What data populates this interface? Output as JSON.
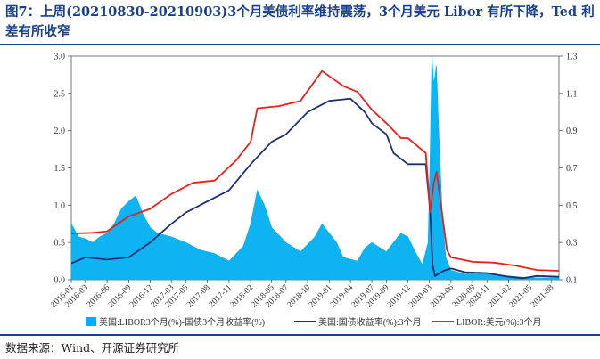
{
  "title": "图7：上周(20210830-20210903)3个月美债利率维持震荡，3个月美元 Libor 有所下降，Ted 利差有所收窄",
  "source": "数据来源：Wind、开源证券研究所",
  "colors": {
    "title": "#1a3f8c",
    "spread": "#00b0f0",
    "treasury": "#1f3070",
    "libor": "#e8211b"
  },
  "chart_data": {
    "type": "line",
    "x_tick_labels": [
      "2016-01",
      "2016-03",
      "2016-06",
      "2016-09",
      "2016-12",
      "2017-03",
      "2017-05",
      "2017-08",
      "2017-11",
      "2018-02",
      "2018-05",
      "2018-07",
      "2018-10",
      "2019-01",
      "2019-04",
      "2019-07",
      "2019-09",
      "2019-12",
      "2020-03",
      "2020-06",
      "2020-09",
      "2020-11",
      "2021-02",
      "2021-05",
      "2021-08"
    ],
    "x_tick_dates": [
      "2016-01-01",
      "2016-03-01",
      "2016-06-01",
      "2016-09-01",
      "2016-12-01",
      "2017-03-01",
      "2017-05-01",
      "2017-08-01",
      "2017-11-01",
      "2018-02-01",
      "2018-05-01",
      "2018-07-01",
      "2018-10-01",
      "2019-01-01",
      "2019-04-01",
      "2019-07-01",
      "2019-09-01",
      "2019-12-01",
      "2020-03-01",
      "2020-06-01",
      "2020-09-01",
      "2020-11-01",
      "2021-02-01",
      "2021-05-01",
      "2021-08-01"
    ],
    "x_range": [
      "2016-01-01",
      "2021-09-03"
    ],
    "y_left": {
      "range": [
        0,
        3.0
      ],
      "ticks": [
        "0.0",
        "0.5",
        "1.0",
        "1.5",
        "2.0",
        "2.5",
        "3.0"
      ]
    },
    "y_right": {
      "range": [
        0.1,
        1.3
      ],
      "ticks": [
        "0.1",
        "0.3",
        "0.5",
        "0.7",
        "0.9",
        "1.1",
        "1.3"
      ]
    },
    "legend_position": "bottom",
    "series": [
      {
        "name": "美国:LIBOR3个月(%)-国债3个月收益率(%)",
        "style": "area",
        "axis": "right",
        "color": "#00b0f0",
        "points": [
          [
            "2016-01-01",
            0.4
          ],
          [
            "2016-02-01",
            0.33
          ],
          [
            "2016-03-01",
            0.32
          ],
          [
            "2016-04-01",
            0.3
          ],
          [
            "2016-05-01",
            0.33
          ],
          [
            "2016-06-01",
            0.35
          ],
          [
            "2016-07-01",
            0.4
          ],
          [
            "2016-08-01",
            0.48
          ],
          [
            "2016-09-01",
            0.52
          ],
          [
            "2016-10-01",
            0.55
          ],
          [
            "2016-11-01",
            0.45
          ],
          [
            "2016-12-01",
            0.38
          ],
          [
            "2017-01-01",
            0.35
          ],
          [
            "2017-03-01",
            0.33
          ],
          [
            "2017-05-01",
            0.3
          ],
          [
            "2017-07-01",
            0.26
          ],
          [
            "2017-09-01",
            0.24
          ],
          [
            "2017-11-01",
            0.2
          ],
          [
            "2018-01-01",
            0.28
          ],
          [
            "2018-02-01",
            0.4
          ],
          [
            "2018-03-01",
            0.58
          ],
          [
            "2018-04-01",
            0.5
          ],
          [
            "2018-05-01",
            0.38
          ],
          [
            "2018-07-01",
            0.3
          ],
          [
            "2018-09-01",
            0.25
          ],
          [
            "2018-11-01",
            0.33
          ],
          [
            "2018-12-01",
            0.4
          ],
          [
            "2019-01-01",
            0.35
          ],
          [
            "2019-02-01",
            0.3
          ],
          [
            "2019-03-01",
            0.22
          ],
          [
            "2019-05-01",
            0.2
          ],
          [
            "2019-06-01",
            0.27
          ],
          [
            "2019-07-01",
            0.3
          ],
          [
            "2019-09-01",
            0.25
          ],
          [
            "2019-10-01",
            0.3
          ],
          [
            "2019-11-01",
            0.35
          ],
          [
            "2019-12-01",
            0.33
          ],
          [
            "2020-01-01",
            0.25
          ],
          [
            "2020-02-01",
            0.18
          ],
          [
            "2020-02-25",
            0.3
          ],
          [
            "2020-03-05",
            0.8
          ],
          [
            "2020-03-12",
            1.3
          ],
          [
            "2020-03-20",
            1.15
          ],
          [
            "2020-03-31",
            1.25
          ],
          [
            "2020-04-10",
            0.9
          ],
          [
            "2020-04-25",
            0.45
          ],
          [
            "2020-05-10",
            0.22
          ],
          [
            "2020-06-01",
            0.15
          ],
          [
            "2020-08-01",
            0.13
          ],
          [
            "2020-10-01",
            0.14
          ],
          [
            "2020-12-01",
            0.13
          ],
          [
            "2021-02-01",
            0.12
          ],
          [
            "2021-05-01",
            0.11
          ],
          [
            "2021-09-03",
            0.11
          ]
        ]
      },
      {
        "name": "美国:国债收益率(%):3个月",
        "style": "line",
        "axis": "left",
        "color": "#1f3070",
        "points": [
          [
            "2016-01-01",
            0.22
          ],
          [
            "2016-03-01",
            0.3
          ],
          [
            "2016-06-01",
            0.27
          ],
          [
            "2016-09-01",
            0.3
          ],
          [
            "2016-12-01",
            0.5
          ],
          [
            "2017-03-01",
            0.75
          ],
          [
            "2017-05-01",
            0.9
          ],
          [
            "2017-08-01",
            1.05
          ],
          [
            "2017-11-01",
            1.2
          ],
          [
            "2018-02-01",
            1.55
          ],
          [
            "2018-05-01",
            1.85
          ],
          [
            "2018-07-01",
            1.95
          ],
          [
            "2018-10-01",
            2.25
          ],
          [
            "2019-01-01",
            2.4
          ],
          [
            "2019-04-01",
            2.43
          ],
          [
            "2019-06-01",
            2.25
          ],
          [
            "2019-07-01",
            2.1
          ],
          [
            "2019-09-01",
            1.95
          ],
          [
            "2019-10-01",
            1.7
          ],
          [
            "2019-12-01",
            1.55
          ],
          [
            "2020-02-15",
            1.55
          ],
          [
            "2020-03-05",
            0.9
          ],
          [
            "2020-03-15",
            0.2
          ],
          [
            "2020-03-25",
            0.05
          ],
          [
            "2020-05-01",
            0.12
          ],
          [
            "2020-06-01",
            0.15
          ],
          [
            "2020-08-01",
            0.1
          ],
          [
            "2020-11-01",
            0.09
          ],
          [
            "2021-02-01",
            0.04
          ],
          [
            "2021-04-01",
            0.02
          ],
          [
            "2021-06-01",
            0.05
          ],
          [
            "2021-09-03",
            0.04
          ]
        ]
      },
      {
        "name": "LIBOR:美元(%):3个月",
        "style": "line",
        "axis": "left",
        "color": "#e8211b",
        "points": [
          [
            "2016-01-01",
            0.62
          ],
          [
            "2016-04-01",
            0.63
          ],
          [
            "2016-06-01",
            0.65
          ],
          [
            "2016-09-01",
            0.85
          ],
          [
            "2016-12-01",
            0.95
          ],
          [
            "2017-03-01",
            1.15
          ],
          [
            "2017-06-01",
            1.3
          ],
          [
            "2017-09-01",
            1.33
          ],
          [
            "2017-12-01",
            1.6
          ],
          [
            "2018-02-01",
            1.85
          ],
          [
            "2018-03-01",
            2.3
          ],
          [
            "2018-06-01",
            2.33
          ],
          [
            "2018-09-01",
            2.4
          ],
          [
            "2018-12-01",
            2.8
          ],
          [
            "2019-03-01",
            2.6
          ],
          [
            "2019-05-01",
            2.52
          ],
          [
            "2019-07-01",
            2.28
          ],
          [
            "2019-09-01",
            2.1
          ],
          [
            "2019-11-01",
            1.9
          ],
          [
            "2019-12-01",
            1.9
          ],
          [
            "2020-02-15",
            1.7
          ],
          [
            "2020-03-05",
            0.9
          ],
          [
            "2020-03-20",
            1.3
          ],
          [
            "2020-04-01",
            1.45
          ],
          [
            "2020-04-20",
            1.0
          ],
          [
            "2020-05-15",
            0.4
          ],
          [
            "2020-06-01",
            0.3
          ],
          [
            "2020-09-01",
            0.24
          ],
          [
            "2020-12-01",
            0.23
          ],
          [
            "2021-03-01",
            0.19
          ],
          [
            "2021-06-01",
            0.13
          ],
          [
            "2021-09-03",
            0.12
          ]
        ]
      }
    ]
  }
}
